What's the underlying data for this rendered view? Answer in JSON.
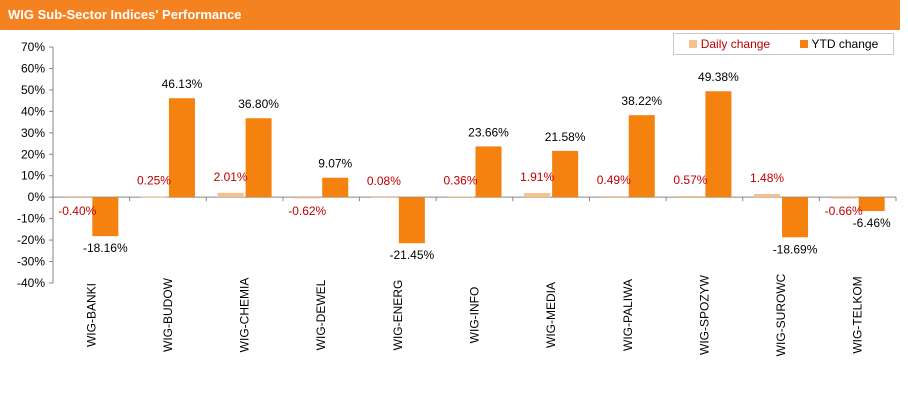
{
  "header": {
    "title": "WIG Sub-Sector Indices' Performance"
  },
  "colors": {
    "header_bg": "#f58220",
    "daily": "#f7c18d",
    "ytd": "#f5820f",
    "daily_label": "#c00000",
    "ytd_label": "#000000"
  },
  "chart_data": {
    "type": "bar",
    "title": "WIG Sub-Sector Indices' Performance",
    "categories": [
      "WIG-BANKI",
      "WIG-BUDOW",
      "WIG-CHEMIA",
      "WIG-DEWEL",
      "WIG-ENERG",
      "WIG-INFO",
      "WIG-MEDIA",
      "WIG-PALIWA",
      "WIG-SPOZYW",
      "WIG-SUROWC",
      "WIG-TELKOM"
    ],
    "series": [
      {
        "name": "Daily change",
        "values": [
          -0.4,
          0.25,
          2.01,
          -0.62,
          0.08,
          0.36,
          1.91,
          0.49,
          0.57,
          1.48,
          -0.66
        ],
        "labels": [
          "-0.40%",
          "0.25%",
          "2.01%",
          "-0.62%",
          "0.08%",
          "0.36%",
          "1.91%",
          "0.49%",
          "0.57%",
          "1.48%",
          "-0.66%"
        ]
      },
      {
        "name": "YTD change",
        "values": [
          -18.16,
          46.13,
          36.8,
          9.07,
          -21.45,
          23.66,
          21.58,
          38.22,
          49.38,
          -18.69,
          -6.46
        ],
        "labels": [
          "-18.16%",
          "46.13%",
          "36.80%",
          "9.07%",
          "-21.45%",
          "23.66%",
          "21.58%",
          "38.22%",
          "49.38%",
          "-18.69%",
          "-6.46%"
        ]
      }
    ],
    "yticks": [
      "70%",
      "60%",
      "50%",
      "40%",
      "30%",
      "20%",
      "10%",
      "0%",
      "-10%",
      "-20%",
      "-30%",
      "-40%"
    ],
    "ylim": [
      -40,
      70
    ],
    "grid": false,
    "legend_position": "top-right"
  }
}
